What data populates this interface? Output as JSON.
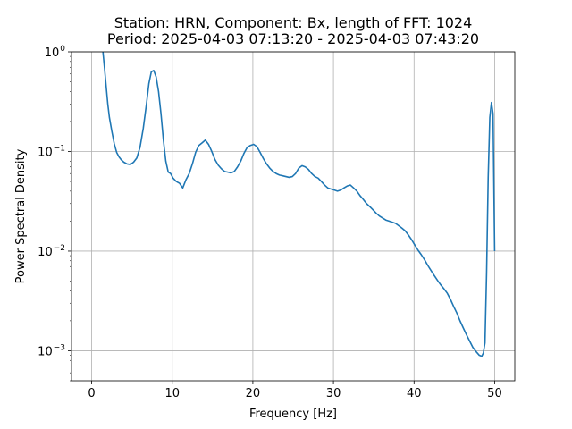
{
  "chart_data": {
    "type": "line",
    "title": "Station: HRN, Component: Bx, length of FFT: 1024",
    "subtitle": "Period: 2025-04-03 07:13:20 - 2025-04-03 07:43:20",
    "xlabel": "Frequency [Hz]",
    "ylabel": "Power Spectral Density",
    "xlim": [
      -2.5,
      52.5
    ],
    "ylim": [
      0.0005,
      1
    ],
    "yscale": "log",
    "grid": true,
    "line_color": "#1f77b4",
    "x_ticks": [
      {
        "value": 0,
        "label": "0"
      },
      {
        "value": 10,
        "label": "10"
      },
      {
        "value": 20,
        "label": "20"
      },
      {
        "value": 30,
        "label": "30"
      },
      {
        "value": 40,
        "label": "40"
      },
      {
        "value": 50,
        "label": "50"
      }
    ],
    "y_ticks": [
      {
        "value": 0.001,
        "base": "10",
        "exp": "−3"
      },
      {
        "value": 0.01,
        "base": "10",
        "exp": "−2"
      },
      {
        "value": 0.1,
        "base": "10",
        "exp": "−1"
      },
      {
        "value": 1,
        "base": "10",
        "exp": "0"
      }
    ],
    "series": [
      {
        "x": [
          1.4,
          1.6,
          1.8,
          2.0,
          2.2,
          2.5,
          2.8,
          3.1,
          3.4,
          3.7,
          4.0,
          4.4,
          4.8,
          5.2,
          5.6,
          6.0,
          6.4,
          6.8,
          7.1,
          7.4,
          7.7,
          8.0,
          8.3,
          8.6,
          8.9,
          9.2,
          9.5,
          9.8,
          10.1,
          10.5,
          10.9,
          11.3,
          11.7,
          12.1,
          12.5,
          12.9,
          13.3,
          13.7,
          14.1,
          14.5,
          14.9,
          15.3,
          15.7,
          16.1,
          16.5,
          16.9,
          17.3,
          17.7,
          18.1,
          18.5,
          18.9,
          19.3,
          19.7,
          20.1,
          20.5,
          20.9,
          21.3,
          21.7,
          22.1,
          22.5,
          22.9,
          23.3,
          23.7,
          24.1,
          24.5,
          24.9,
          25.3,
          25.7,
          26.1,
          26.5,
          26.9,
          27.3,
          27.7,
          28.1,
          28.5,
          28.9,
          29.3,
          29.7,
          30.1,
          30.5,
          30.9,
          31.3,
          31.7,
          32.1,
          32.5,
          32.9,
          33.3,
          33.7,
          34.1,
          34.5,
          34.9,
          35.3,
          35.7,
          36.1,
          36.5,
          36.9,
          37.3,
          37.7,
          38.1,
          38.5,
          38.9,
          39.3,
          39.7,
          40.1,
          40.5,
          40.9,
          41.3,
          41.7,
          42.1,
          42.5,
          42.9,
          43.3,
          43.7,
          44.1,
          44.5,
          44.9,
          45.3,
          45.7,
          46.1,
          46.5,
          46.9,
          47.3,
          47.7,
          48.1,
          48.4,
          48.6,
          48.8,
          49.0,
          49.2,
          49.4,
          49.6,
          49.8,
          50.0
        ],
        "y": [
          1.0,
          0.68,
          0.45,
          0.3,
          0.22,
          0.16,
          0.12,
          0.098,
          0.088,
          0.082,
          0.078,
          0.075,
          0.074,
          0.078,
          0.086,
          0.11,
          0.17,
          0.3,
          0.48,
          0.63,
          0.65,
          0.56,
          0.4,
          0.24,
          0.13,
          0.08,
          0.062,
          0.06,
          0.054,
          0.05,
          0.048,
          0.043,
          0.052,
          0.06,
          0.075,
          0.098,
          0.115,
          0.122,
          0.13,
          0.118,
          0.1,
          0.083,
          0.073,
          0.067,
          0.063,
          0.062,
          0.061,
          0.063,
          0.07,
          0.08,
          0.096,
          0.11,
          0.115,
          0.118,
          0.112,
          0.098,
          0.085,
          0.075,
          0.068,
          0.063,
          0.06,
          0.058,
          0.057,
          0.056,
          0.055,
          0.056,
          0.06,
          0.068,
          0.072,
          0.07,
          0.066,
          0.06,
          0.056,
          0.054,
          0.05,
          0.046,
          0.043,
          0.042,
          0.041,
          0.04,
          0.041,
          0.043,
          0.045,
          0.046,
          0.043,
          0.04,
          0.036,
          0.033,
          0.03,
          0.028,
          0.026,
          0.024,
          0.0225,
          0.0215,
          0.0205,
          0.02,
          0.0195,
          0.019,
          0.018,
          0.017,
          0.016,
          0.0145,
          0.013,
          0.0115,
          0.0102,
          0.0092,
          0.0082,
          0.0072,
          0.0064,
          0.0057,
          0.0051,
          0.0046,
          0.0042,
          0.0038,
          0.0033,
          0.0028,
          0.0024,
          0.002,
          0.0017,
          0.00145,
          0.00125,
          0.00108,
          0.00098,
          0.0009,
          0.00088,
          0.00095,
          0.0012,
          0.006,
          0.055,
          0.22,
          0.31,
          0.24,
          0.01
        ]
      }
    ]
  }
}
